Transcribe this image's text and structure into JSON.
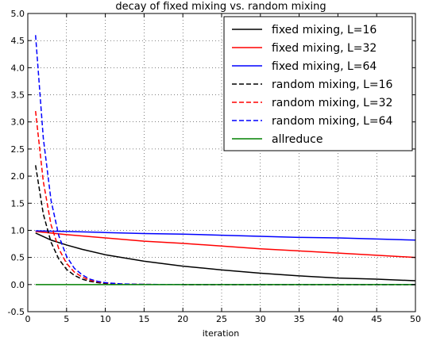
{
  "chart_data": {
    "type": "line",
    "title": "decay of fixed mixing vs. random mixing",
    "xlabel": "iteration",
    "ylabel": "",
    "xlim": [
      0,
      50
    ],
    "ylim": [
      -0.5,
      5.0
    ],
    "xticks": [
      0,
      5,
      10,
      15,
      20,
      25,
      30,
      35,
      40,
      45,
      50
    ],
    "yticks": [
      -0.5,
      0.0,
      0.5,
      1.0,
      1.5,
      2.0,
      2.5,
      3.0,
      3.5,
      4.0,
      4.5,
      5.0
    ],
    "grid": true,
    "legend_position": "top-right",
    "series": [
      {
        "name": "fixed mixing, L=16",
        "color": "#000000",
        "style": "solid",
        "x": [
          1,
          3,
          5,
          7,
          10,
          15,
          20,
          25,
          30,
          35,
          40,
          45,
          50
        ],
        "y": [
          0.95,
          0.82,
          0.73,
          0.65,
          0.55,
          0.43,
          0.34,
          0.27,
          0.21,
          0.16,
          0.12,
          0.1,
          0.07
        ]
      },
      {
        "name": "fixed mixing, L=32",
        "color": "#ff0000",
        "style": "solid",
        "x": [
          1,
          5,
          10,
          15,
          20,
          25,
          30,
          35,
          40,
          45,
          50
        ],
        "y": [
          0.98,
          0.92,
          0.86,
          0.8,
          0.76,
          0.71,
          0.66,
          0.62,
          0.58,
          0.54,
          0.5
        ]
      },
      {
        "name": "fixed mixing, L=64",
        "color": "#0000ff",
        "style": "solid",
        "x": [
          1,
          5,
          10,
          15,
          20,
          25,
          30,
          35,
          40,
          45,
          50
        ],
        "y": [
          0.99,
          0.98,
          0.96,
          0.94,
          0.93,
          0.91,
          0.89,
          0.87,
          0.86,
          0.84,
          0.82
        ]
      },
      {
        "name": "random mixing, L=16",
        "color": "#000000",
        "style": "dashed",
        "x": [
          1,
          2,
          3,
          4,
          5,
          6,
          7,
          8,
          9,
          10,
          12,
          14,
          16,
          20,
          30,
          40,
          50
        ],
        "y": [
          2.2,
          1.3,
          0.78,
          0.47,
          0.28,
          0.17,
          0.1,
          0.06,
          0.035,
          0.02,
          0.008,
          0.003,
          0.001,
          0.0,
          0.0,
          0.0,
          0.0
        ]
      },
      {
        "name": "random mixing, L=32",
        "color": "#ff0000",
        "style": "dashed",
        "x": [
          1,
          2,
          3,
          4,
          5,
          6,
          7,
          8,
          9,
          10,
          12,
          14,
          16,
          20,
          30,
          40,
          50
        ],
        "y": [
          3.2,
          1.9,
          1.1,
          0.66,
          0.39,
          0.23,
          0.14,
          0.08,
          0.05,
          0.03,
          0.01,
          0.004,
          0.002,
          0.0,
          0.0,
          0.0,
          0.0
        ]
      },
      {
        "name": "random mixing, L=64",
        "color": "#0000ff",
        "style": "dashed",
        "x": [
          1,
          2,
          3,
          4,
          5,
          6,
          7,
          8,
          9,
          10,
          12,
          14,
          16,
          20,
          30,
          40,
          50
        ],
        "y": [
          4.6,
          2.7,
          1.55,
          0.9,
          0.52,
          0.3,
          0.18,
          0.1,
          0.06,
          0.035,
          0.012,
          0.005,
          0.002,
          0.0,
          0.0,
          0.0,
          0.0
        ]
      },
      {
        "name": "allreduce",
        "color": "#008000",
        "style": "solid",
        "x": [
          1,
          50
        ],
        "y": [
          0.0,
          0.0
        ]
      }
    ]
  }
}
